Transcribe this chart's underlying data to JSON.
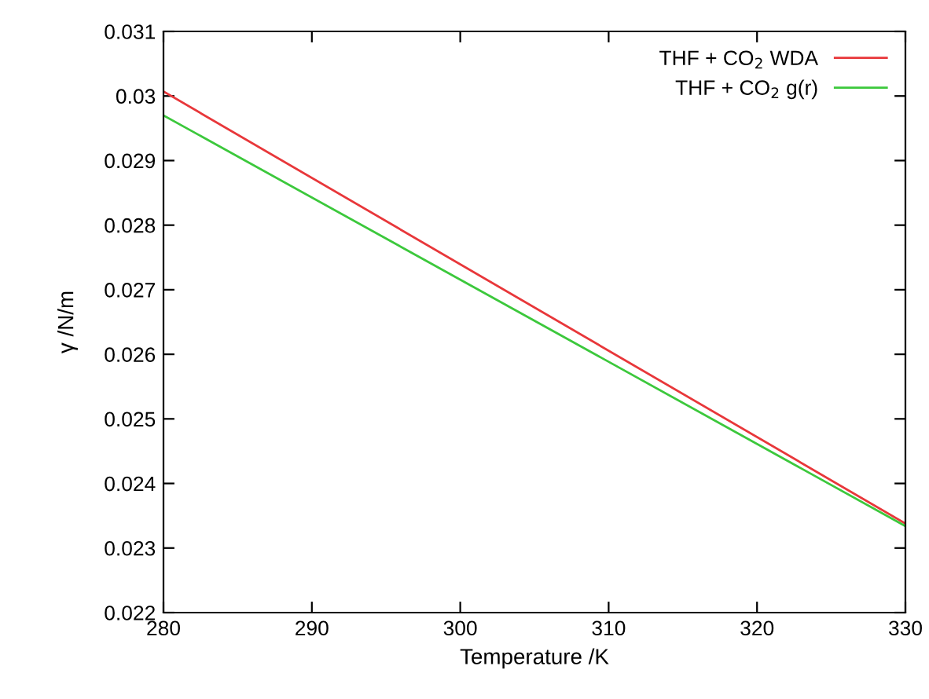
{
  "chart_data": {
    "type": "line",
    "xlabel": "Temperature /K",
    "ylabel": "γ /N/m",
    "xlim": [
      280,
      330
    ],
    "xticks": [
      280,
      290,
      300,
      310,
      320,
      330
    ],
    "ylim": [
      0.022,
      0.031
    ],
    "yticks": [
      0.022,
      0.023,
      0.024,
      0.025,
      0.026,
      0.027,
      0.028,
      0.029,
      0.03,
      0.031
    ],
    "grid": false,
    "legend": "top right",
    "marker": "none",
    "line_style": "solid",
    "x": [
      280,
      330
    ],
    "series": [
      {
        "name": "THF + CO$_{2}$ WDA",
        "color": "#e8373a",
        "values": [
          0.03007,
          0.02338
        ]
      },
      {
        "name": "THF + CO$_{2}$ g(r)",
        "color": "#3cc83c",
        "values": [
          0.0297,
          0.02334
        ]
      }
    ]
  }
}
